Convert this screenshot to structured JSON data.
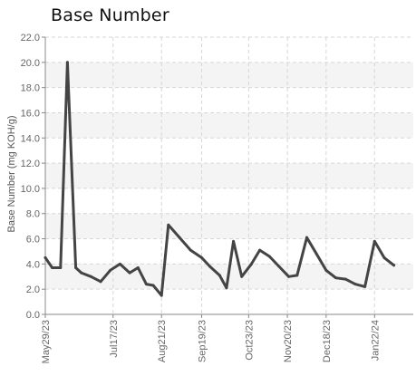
{
  "chart_data": {
    "type": "line",
    "title": "Base Number",
    "ylabel": "Base Number (mg KOH/g)",
    "xlabel": "",
    "ylim": [
      0,
      22
    ],
    "yticks": [
      0.0,
      2.0,
      4.0,
      6.0,
      8.0,
      10.0,
      12.0,
      14.0,
      16.0,
      18.0,
      20.0,
      22.0
    ],
    "ytick_labels": [
      "0.0",
      "2.0",
      "4.0",
      "6.0",
      "8.0",
      "10.0",
      "12.0",
      "14.0",
      "16.0",
      "18.0",
      "20.0",
      "22.0"
    ],
    "xlim": [
      "2023-05-29",
      "2024-02-19"
    ],
    "xticks": [
      {
        "date": "2023-05-29",
        "label": "May29/23"
      },
      {
        "date": "2023-07-17",
        "label": "Jul17/23"
      },
      {
        "date": "2023-08-21",
        "label": "Aug21/23"
      },
      {
        "date": "2023-09-19",
        "label": "Sep19/23"
      },
      {
        "date": "2023-10-23",
        "label": "Oct23/23"
      },
      {
        "date": "2023-11-20",
        "label": "Nov20/23"
      },
      {
        "date": "2023-12-18",
        "label": "Dec18/23"
      },
      {
        "date": "2024-01-22",
        "label": "Jan22/24"
      }
    ],
    "grid": true,
    "series": [
      {
        "color": "#444444",
        "points": [
          {
            "x": "2023-05-29",
            "y": 4.5
          },
          {
            "x": "2023-06-03",
            "y": 3.7
          },
          {
            "x": "2023-06-09",
            "y": 3.7
          },
          {
            "x": "2023-06-14",
            "y": 20.0
          },
          {
            "x": "2023-06-20",
            "y": 3.7
          },
          {
            "x": "2023-06-24",
            "y": 3.3
          },
          {
            "x": "2023-07-01",
            "y": 3.0
          },
          {
            "x": "2023-07-08",
            "y": 2.6
          },
          {
            "x": "2023-07-15",
            "y": 3.5
          },
          {
            "x": "2023-07-22",
            "y": 4.0
          },
          {
            "x": "2023-07-29",
            "y": 3.3
          },
          {
            "x": "2023-08-04",
            "y": 3.7
          },
          {
            "x": "2023-08-10",
            "y": 2.4
          },
          {
            "x": "2023-08-15",
            "y": 2.3
          },
          {
            "x": "2023-08-21",
            "y": 1.5
          },
          {
            "x": "2023-08-26",
            "y": 7.1
          },
          {
            "x": "2023-09-03",
            "y": 6.1
          },
          {
            "x": "2023-09-11",
            "y": 5.1
          },
          {
            "x": "2023-09-19",
            "y": 4.5
          },
          {
            "x": "2023-09-25",
            "y": 3.8
          },
          {
            "x": "2023-10-02",
            "y": 3.1
          },
          {
            "x": "2023-10-07",
            "y": 2.1
          },
          {
            "x": "2023-10-12",
            "y": 5.8
          },
          {
            "x": "2023-10-18",
            "y": 3.0
          },
          {
            "x": "2023-10-25",
            "y": 4.0
          },
          {
            "x": "2023-10-31",
            "y": 5.1
          },
          {
            "x": "2023-11-07",
            "y": 4.6
          },
          {
            "x": "2023-11-14",
            "y": 3.8
          },
          {
            "x": "2023-11-21",
            "y": 3.0
          },
          {
            "x": "2023-11-27",
            "y": 3.1
          },
          {
            "x": "2023-12-04",
            "y": 6.1
          },
          {
            "x": "2023-12-11",
            "y": 4.8
          },
          {
            "x": "2023-12-18",
            "y": 3.5
          },
          {
            "x": "2023-12-25",
            "y": 2.9
          },
          {
            "x": "2024-01-01",
            "y": 2.8
          },
          {
            "x": "2024-01-08",
            "y": 2.4
          },
          {
            "x": "2024-01-15",
            "y": 2.2
          },
          {
            "x": "2024-01-22",
            "y": 5.8
          },
          {
            "x": "2024-01-29",
            "y": 4.5
          },
          {
            "x": "2024-02-05",
            "y": 3.9
          }
        ]
      }
    ]
  }
}
